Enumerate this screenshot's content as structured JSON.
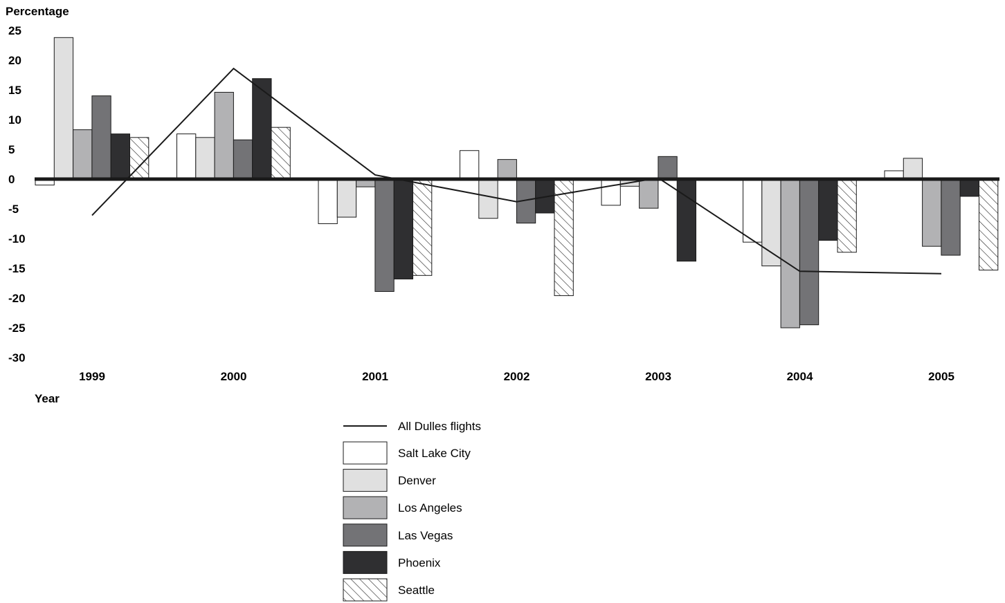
{
  "chart_data": {
    "type": "bar",
    "ylabel": "Percentage",
    "xlabel": "Year",
    "ylim": [
      -30,
      25
    ],
    "yticks": [
      25,
      20,
      15,
      10,
      5,
      0,
      -5,
      -10,
      -15,
      -20,
      -25,
      -30
    ],
    "categories": [
      "1999",
      "2000",
      "2001",
      "2002",
      "2003",
      "2004",
      "2005"
    ],
    "grid": false,
    "legend_position": "bottom-center",
    "series": [
      {
        "name": "Salt Lake City",
        "fill": "#ffffff",
        "pattern": "solid",
        "values": [
          -1,
          7.6,
          -7.5,
          4.8,
          -4.4,
          -10.6,
          1.4
        ]
      },
      {
        "name": "Denver",
        "fill": "#e0e0e0",
        "pattern": "solid",
        "values": [
          23.8,
          7,
          -6.4,
          -6.6,
          -1.2,
          -14.6,
          3.5
        ]
      },
      {
        "name": "Los Angeles",
        "fill": "#b2b2b4",
        "pattern": "solid",
        "values": [
          8.3,
          14.6,
          -1.3,
          3.3,
          -4.9,
          -25,
          -11.3
        ]
      },
      {
        "name": "Las Vegas",
        "fill": "#737376",
        "pattern": "solid",
        "values": [
          14,
          6.6,
          -18.9,
          -7.4,
          3.8,
          -24.5,
          -12.8
        ]
      },
      {
        "name": "Phoenix",
        "fill": "#2f2f31",
        "pattern": "solid",
        "values": [
          7.6,
          16.9,
          -16.8,
          -5.7,
          -13.8,
          -10.3,
          -2.9
        ]
      },
      {
        "name": "Seattle",
        "fill": "#ffffff",
        "pattern": "hatch",
        "values": [
          7,
          8.7,
          -16.2,
          -19.6,
          0,
          -12.3,
          -15.3
        ]
      }
    ],
    "line_series": {
      "name": "All Dulles flights",
      "color": "#1a1a1a",
      "x": [
        "1999",
        "2000",
        "2001",
        "2002",
        "2003",
        "2004",
        "2005"
      ],
      "values": [
        -6.1,
        18.6,
        0.7,
        -3.8,
        0.2,
        -15.5,
        -15.9
      ]
    }
  }
}
